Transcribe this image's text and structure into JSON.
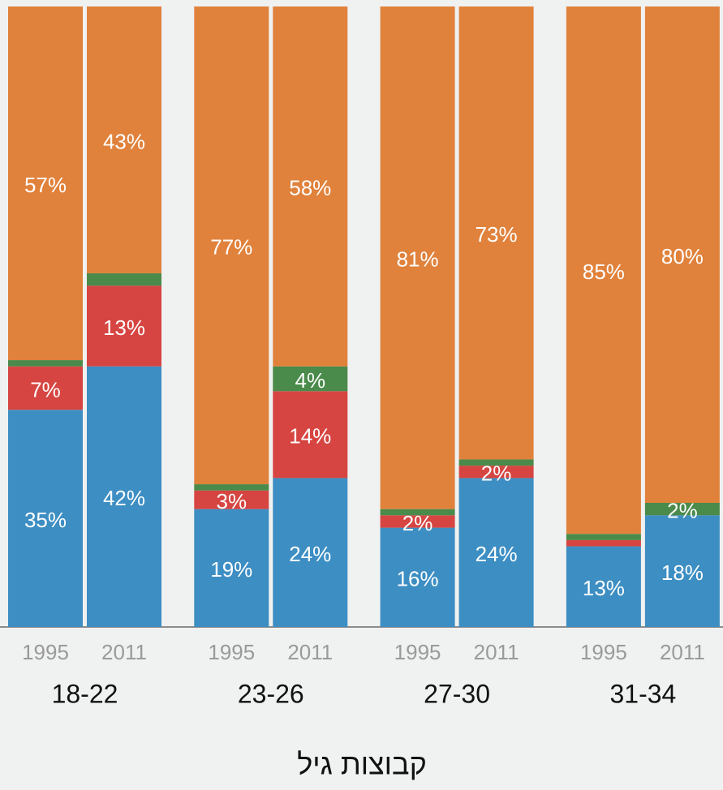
{
  "chart_data": {
    "type": "stacked_bar",
    "categories": [
      "1995",
      "2011",
      "1995",
      "2011",
      "1995",
      "2011",
      "1995",
      "2011"
    ],
    "groups": [
      "18-22",
      "23-26",
      "27-30",
      "31-34"
    ],
    "xlabel": "קבוצות גיל",
    "ylim": [
      0,
      100
    ],
    "series": [
      {
        "color": "#3d8ec3",
        "values": [
          35,
          42,
          19,
          24,
          16,
          24,
          13,
          18
        ],
        "value_labels": [
          "35%",
          "42%",
          "19%",
          "24%",
          "16%",
          "24%",
          "13%",
          "18%"
        ]
      },
      {
        "color": "#d64541",
        "values": [
          7,
          13,
          3,
          14,
          2,
          2,
          1,
          0
        ],
        "value_labels": [
          "7%",
          "13%",
          "3%",
          "14%",
          "2%",
          "2%",
          null,
          null
        ]
      },
      {
        "color": "#4a8a4a",
        "values": [
          1,
          2,
          1,
          4,
          1,
          1,
          1,
          2
        ],
        "value_labels": [
          null,
          null,
          null,
          "4%",
          null,
          null,
          null,
          "2%"
        ]
      },
      {
        "color": "#e0823c",
        "values": [
          57,
          43,
          77,
          58,
          81,
          73,
          85,
          80
        ],
        "value_labels": [
          "57%",
          "43%",
          "77%",
          "58%",
          "81%",
          "73%",
          "85%",
          "80%"
        ]
      }
    ]
  }
}
